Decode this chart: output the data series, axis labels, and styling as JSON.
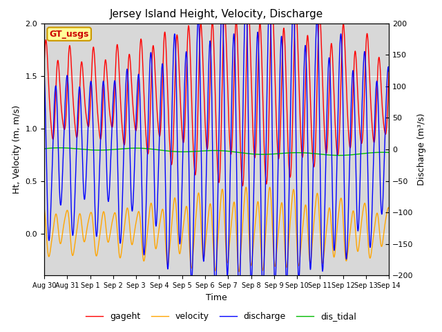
{
  "title": "Jersey Island Height, Velocity, Discharge",
  "xlabel": "Time",
  "ylabel_left": "Ht, Velocity (m, m/s)",
  "ylabel_right": "Discharge (m³/s)",
  "ylim_left": [
    -0.4,
    2.0
  ],
  "ylim_right": [
    -200,
    200
  ],
  "xlim_days": [
    0,
    15
  ],
  "tick_labels": [
    "Aug 30",
    "Aug 31",
    "Sep 1",
    "Sep 2",
    "Sep 3",
    "Sep 4",
    "Sep 5",
    "Sep 6",
    "Sep 7",
    "Sep 8",
    "Sep 9",
    "Sep 10",
    "Sep 11",
    "Sep 12",
    "Sep 13",
    "Sep 14"
  ],
  "colors": {
    "gageht": "#ff0000",
    "velocity": "#ffa500",
    "discharge": "#0000ff",
    "dis_tidal": "#00bb00"
  },
  "legend_labels": [
    "gageht",
    "velocity",
    "discharge",
    "dis_tidal"
  ],
  "gt_usgs_label": "GT_usgs",
  "gt_usgs_bg": "#ffff99",
  "gt_usgs_border": "#cc9900",
  "background_color": "#d8d8d8",
  "tidal_period_hours": 12.42,
  "n_points": 3000,
  "duration_days": 15,
  "linewidth": 1.0
}
